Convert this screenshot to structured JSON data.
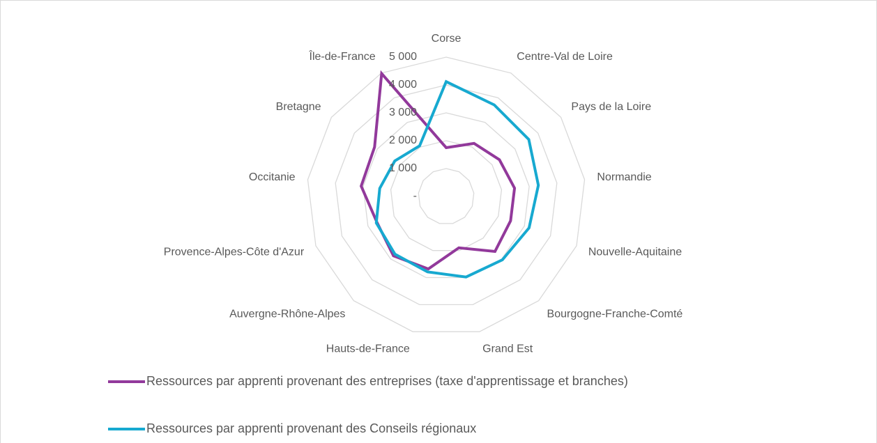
{
  "chart_data": {
    "type": "radar",
    "categories": [
      "Corse",
      "Centre-Val de Loire",
      "Pays de la Loire",
      "Normandie",
      "Nouvelle-Aquitaine",
      "Bourgogne-Franche-Comté",
      "Grand Est",
      "Hauts-de-France",
      "Auvergne-Rhône-Alpes",
      "Provence-Alpes-Côte d'Azur",
      "Occitanie",
      "Bretagne",
      "Île-de-France"
    ],
    "series": [
      {
        "name": "Ressources par apprenti provenant des entreprises (taxe d'apprentissage et branches)",
        "color": "#92399b",
        "values": [
          1750,
          2150,
          2320,
          2470,
          2470,
          2640,
          1900,
          2680,
          2850,
          2650,
          3070,
          3120,
          4980
        ]
      },
      {
        "name": "Ressources par apprenti provenant des Conseils régionaux",
        "color": "#17a9d0",
        "values": [
          4120,
          3710,
          3600,
          3330,
          3180,
          3040,
          2980,
          2790,
          2770,
          2680,
          2400,
          2240,
          2050
        ]
      }
    ],
    "ylim": [
      0,
      5000
    ],
    "yticks": [
      {
        "value": 0,
        "label": "-"
      },
      {
        "value": 1000,
        "label": "1 000"
      },
      {
        "value": 2000,
        "label": "2 000"
      },
      {
        "value": 3000,
        "label": "3 000"
      },
      {
        "value": 4000,
        "label": "4 000"
      },
      {
        "value": 5000,
        "label": "5 000"
      }
    ],
    "grid": true,
    "legend": "bottom"
  }
}
